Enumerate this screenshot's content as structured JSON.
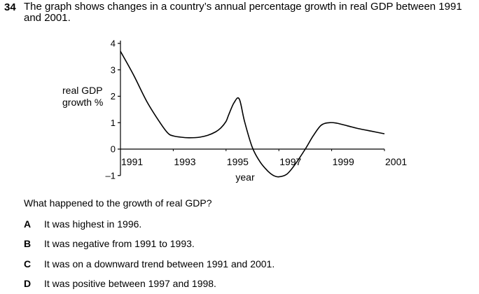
{
  "question": {
    "number": "34",
    "stem": "The graph shows changes in a country’s annual percentage growth in real GDP between 1991 and 2001.",
    "prompt": "What happened to the growth of real GDP?"
  },
  "options": [
    {
      "letter": "A",
      "text": "It was highest in 1996."
    },
    {
      "letter": "B",
      "text": "It was negative from 1991 to 1993."
    },
    {
      "letter": "C",
      "text": "It was on a downward trend between 1991 and 2001."
    },
    {
      "letter": "D",
      "text": "It was positive between 1997 and 1998."
    }
  ],
  "chart_data": {
    "type": "line",
    "ylabel_line1": "real GDP",
    "ylabel_line2": "growth %",
    "xlabel": "year",
    "x_ticks": [
      "1991",
      "1993",
      "1995",
      "1997",
      "1999",
      "2001"
    ],
    "y_ticks": [
      "4",
      "3",
      "2",
      "1",
      "0",
      "–1"
    ],
    "xlim": [
      1991,
      2001
    ],
    "ylim": [
      -1,
      4
    ],
    "series": [
      {
        "x": [
          1991.0,
          1991.5,
          1992.0,
          1992.5,
          1992.8,
          1993.0,
          1993.3,
          1993.6,
          1994.0,
          1994.3,
          1994.6,
          1994.8,
          1995.0,
          1995.1,
          1995.3,
          1995.5,
          1995.7,
          1996.0,
          1996.3,
          1996.6,
          1996.8,
          1997.0,
          1997.3,
          1997.6,
          1998.0,
          1998.3,
          1998.6,
          1998.9,
          1999.2,
          1999.6,
          2000.0,
          2000.5,
          2001.0
        ],
        "y": [
          3.7,
          2.8,
          1.8,
          1.0,
          0.6,
          0.5,
          0.45,
          0.43,
          0.45,
          0.52,
          0.65,
          0.8,
          1.05,
          1.3,
          1.75,
          1.9,
          1.05,
          0.05,
          -0.5,
          -0.85,
          -1.0,
          -1.05,
          -0.95,
          -0.6,
          0.0,
          0.5,
          0.9,
          1.0,
          0.98,
          0.88,
          0.78,
          0.68,
          0.58
        ]
      }
    ]
  }
}
